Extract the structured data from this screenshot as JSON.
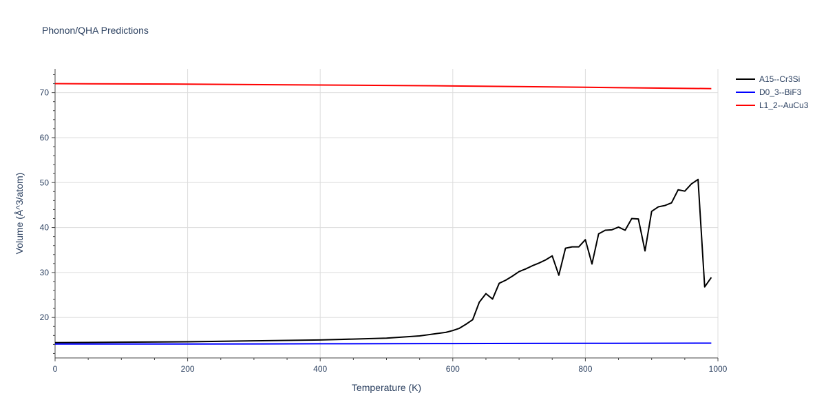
{
  "chart_data": {
    "type": "line",
    "title": "Phonon/QHA Predictions",
    "xlabel": "Temperature (K)",
    "ylabel": "Volume (Å^3/atom)",
    "xlim": [
      0,
      1000
    ],
    "ylim": [
      11.0,
      75.3
    ],
    "x_ticks": [
      0,
      200,
      400,
      600,
      800,
      1000
    ],
    "y_ticks": [
      20,
      30,
      40,
      50,
      60,
      70
    ],
    "grid": true,
    "legend_position": "top-right",
    "series": [
      {
        "name": "A15--Cr3Si",
        "color": "#000000",
        "x": [
          0,
          100,
          200,
          300,
          400,
          450,
          500,
          550,
          560,
          570,
          580,
          590,
          600,
          610,
          620,
          630,
          640,
          650,
          660,
          670,
          680,
          690,
          700,
          710,
          720,
          730,
          740,
          750,
          760,
          770,
          780,
          790,
          800,
          810,
          820,
          830,
          840,
          850,
          860,
          870,
          880,
          890,
          900,
          910,
          920,
          930,
          940,
          950,
          960,
          970,
          980,
          990
        ],
        "y": [
          14.4,
          14.5,
          14.6,
          14.8,
          15.0,
          15.2,
          15.4,
          15.9,
          16.1,
          16.3,
          16.5,
          16.7,
          17.1,
          17.6,
          18.5,
          19.5,
          23.4,
          25.3,
          24.1,
          27.6,
          28.3,
          29.2,
          30.2,
          30.8,
          31.5,
          32.1,
          32.8,
          33.7,
          29.4,
          35.4,
          35.7,
          35.7,
          37.3,
          31.9,
          38.6,
          39.4,
          39.5,
          40.1,
          39.4,
          42.0,
          41.9,
          34.8,
          43.6,
          44.6,
          44.9,
          45.5,
          48.4,
          48.1,
          49.7,
          50.7,
          26.8,
          28.9
        ]
      },
      {
        "name": "D0_3--BiF3",
        "color": "#0000ff",
        "x": [
          0,
          200,
          400,
          600,
          800,
          990
        ],
        "y": [
          14.1,
          14.1,
          14.15,
          14.2,
          14.25,
          14.3
        ]
      },
      {
        "name": "L1_2--AuCu3",
        "color": "#ff0000",
        "x": [
          0,
          200,
          400,
          600,
          800,
          990
        ],
        "y": [
          72.0,
          71.9,
          71.7,
          71.5,
          71.2,
          70.9
        ]
      }
    ]
  }
}
